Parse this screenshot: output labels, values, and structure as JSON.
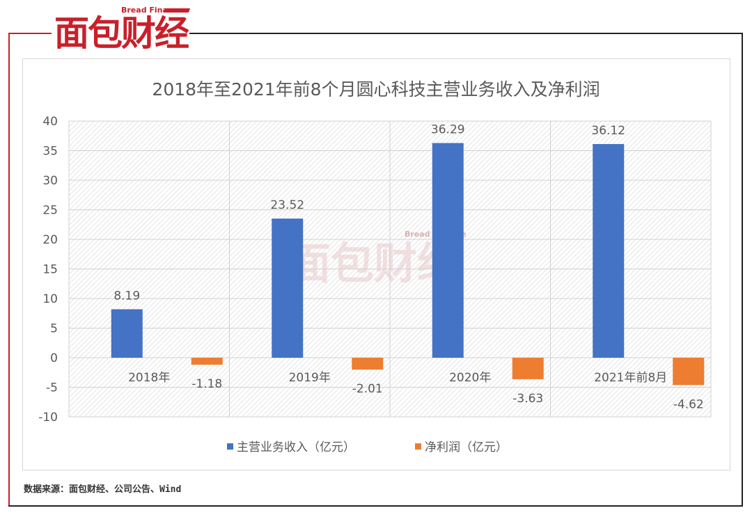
{
  "logo": {
    "brand_en": "Bread Finance",
    "brand_cn": "面包财经"
  },
  "watermark": {
    "brand_en": "Bread Finance",
    "brand_cn": "面包财经"
  },
  "source_text": "数据来源：面包财经、公司公告、Wind",
  "colors": {
    "revenue": "#4472c4",
    "profit": "#ed7d31",
    "brand_red": "#c8202a"
  },
  "chart_data": {
    "type": "bar",
    "title": "2018年至2021年前8个月圆心科技主营业务收入及净利润",
    "categories": [
      "2018年",
      "2019年",
      "2020年",
      "2021年前8月"
    ],
    "series": [
      {
        "name": "主营业务收入（亿元）",
        "values": [
          8.19,
          23.52,
          36.29,
          36.12
        ],
        "labels": [
          "8.19",
          "23.52",
          "36.29",
          "36.12"
        ]
      },
      {
        "name": "净利润（亿元）",
        "values": [
          -1.18,
          -2.01,
          -3.63,
          -4.62
        ],
        "labels": [
          "-1.18",
          "-2.01",
          "-3.63",
          "-4.62"
        ]
      }
    ],
    "ylim": [
      -10,
      40
    ],
    "yticks": [
      "40",
      "35",
      "30",
      "25",
      "20",
      "15",
      "10",
      "5",
      "0",
      "-5",
      "-10"
    ],
    "ytick_values": [
      40,
      35,
      30,
      25,
      20,
      15,
      10,
      5,
      0,
      -5,
      -10
    ],
    "grid": true,
    "legend_position": "bottom"
  }
}
